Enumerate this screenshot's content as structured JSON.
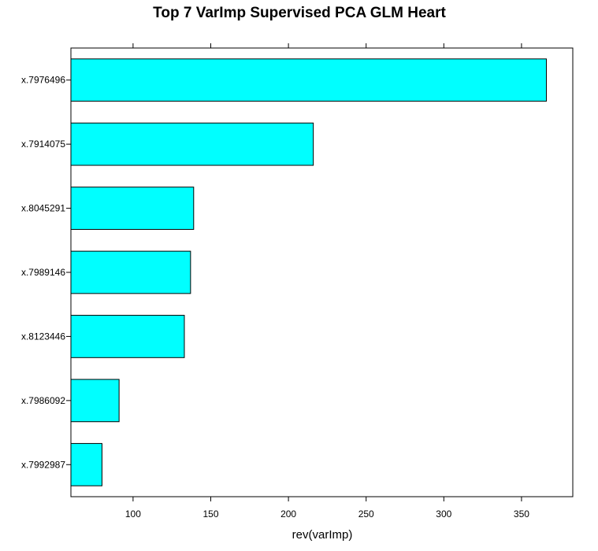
{
  "chart_data": {
    "type": "bar",
    "orientation": "horizontal",
    "title": "Top 7 VarImp Supervised PCA GLM Heart",
    "xlabel": "rev(varImp)",
    "ylabel": "",
    "categories": [
      "x.7976496",
      "x.7914075",
      "x.8045291",
      "x.7989146",
      "x.8123446",
      "x.7986092",
      "x.7992987"
    ],
    "values": [
      366,
      216,
      139,
      137,
      133,
      91,
      80
    ],
    "xlim": [
      60,
      383
    ],
    "x_ticks": [
      100,
      150,
      200,
      250,
      300,
      350
    ],
    "x_tick_labels": [
      "100",
      "150",
      "200",
      "250",
      "300",
      "350"
    ],
    "bar_color": "#00ffff",
    "bar_border_color": "#000000",
    "grid": false,
    "legend": "none",
    "ticks_on_top": true
  }
}
